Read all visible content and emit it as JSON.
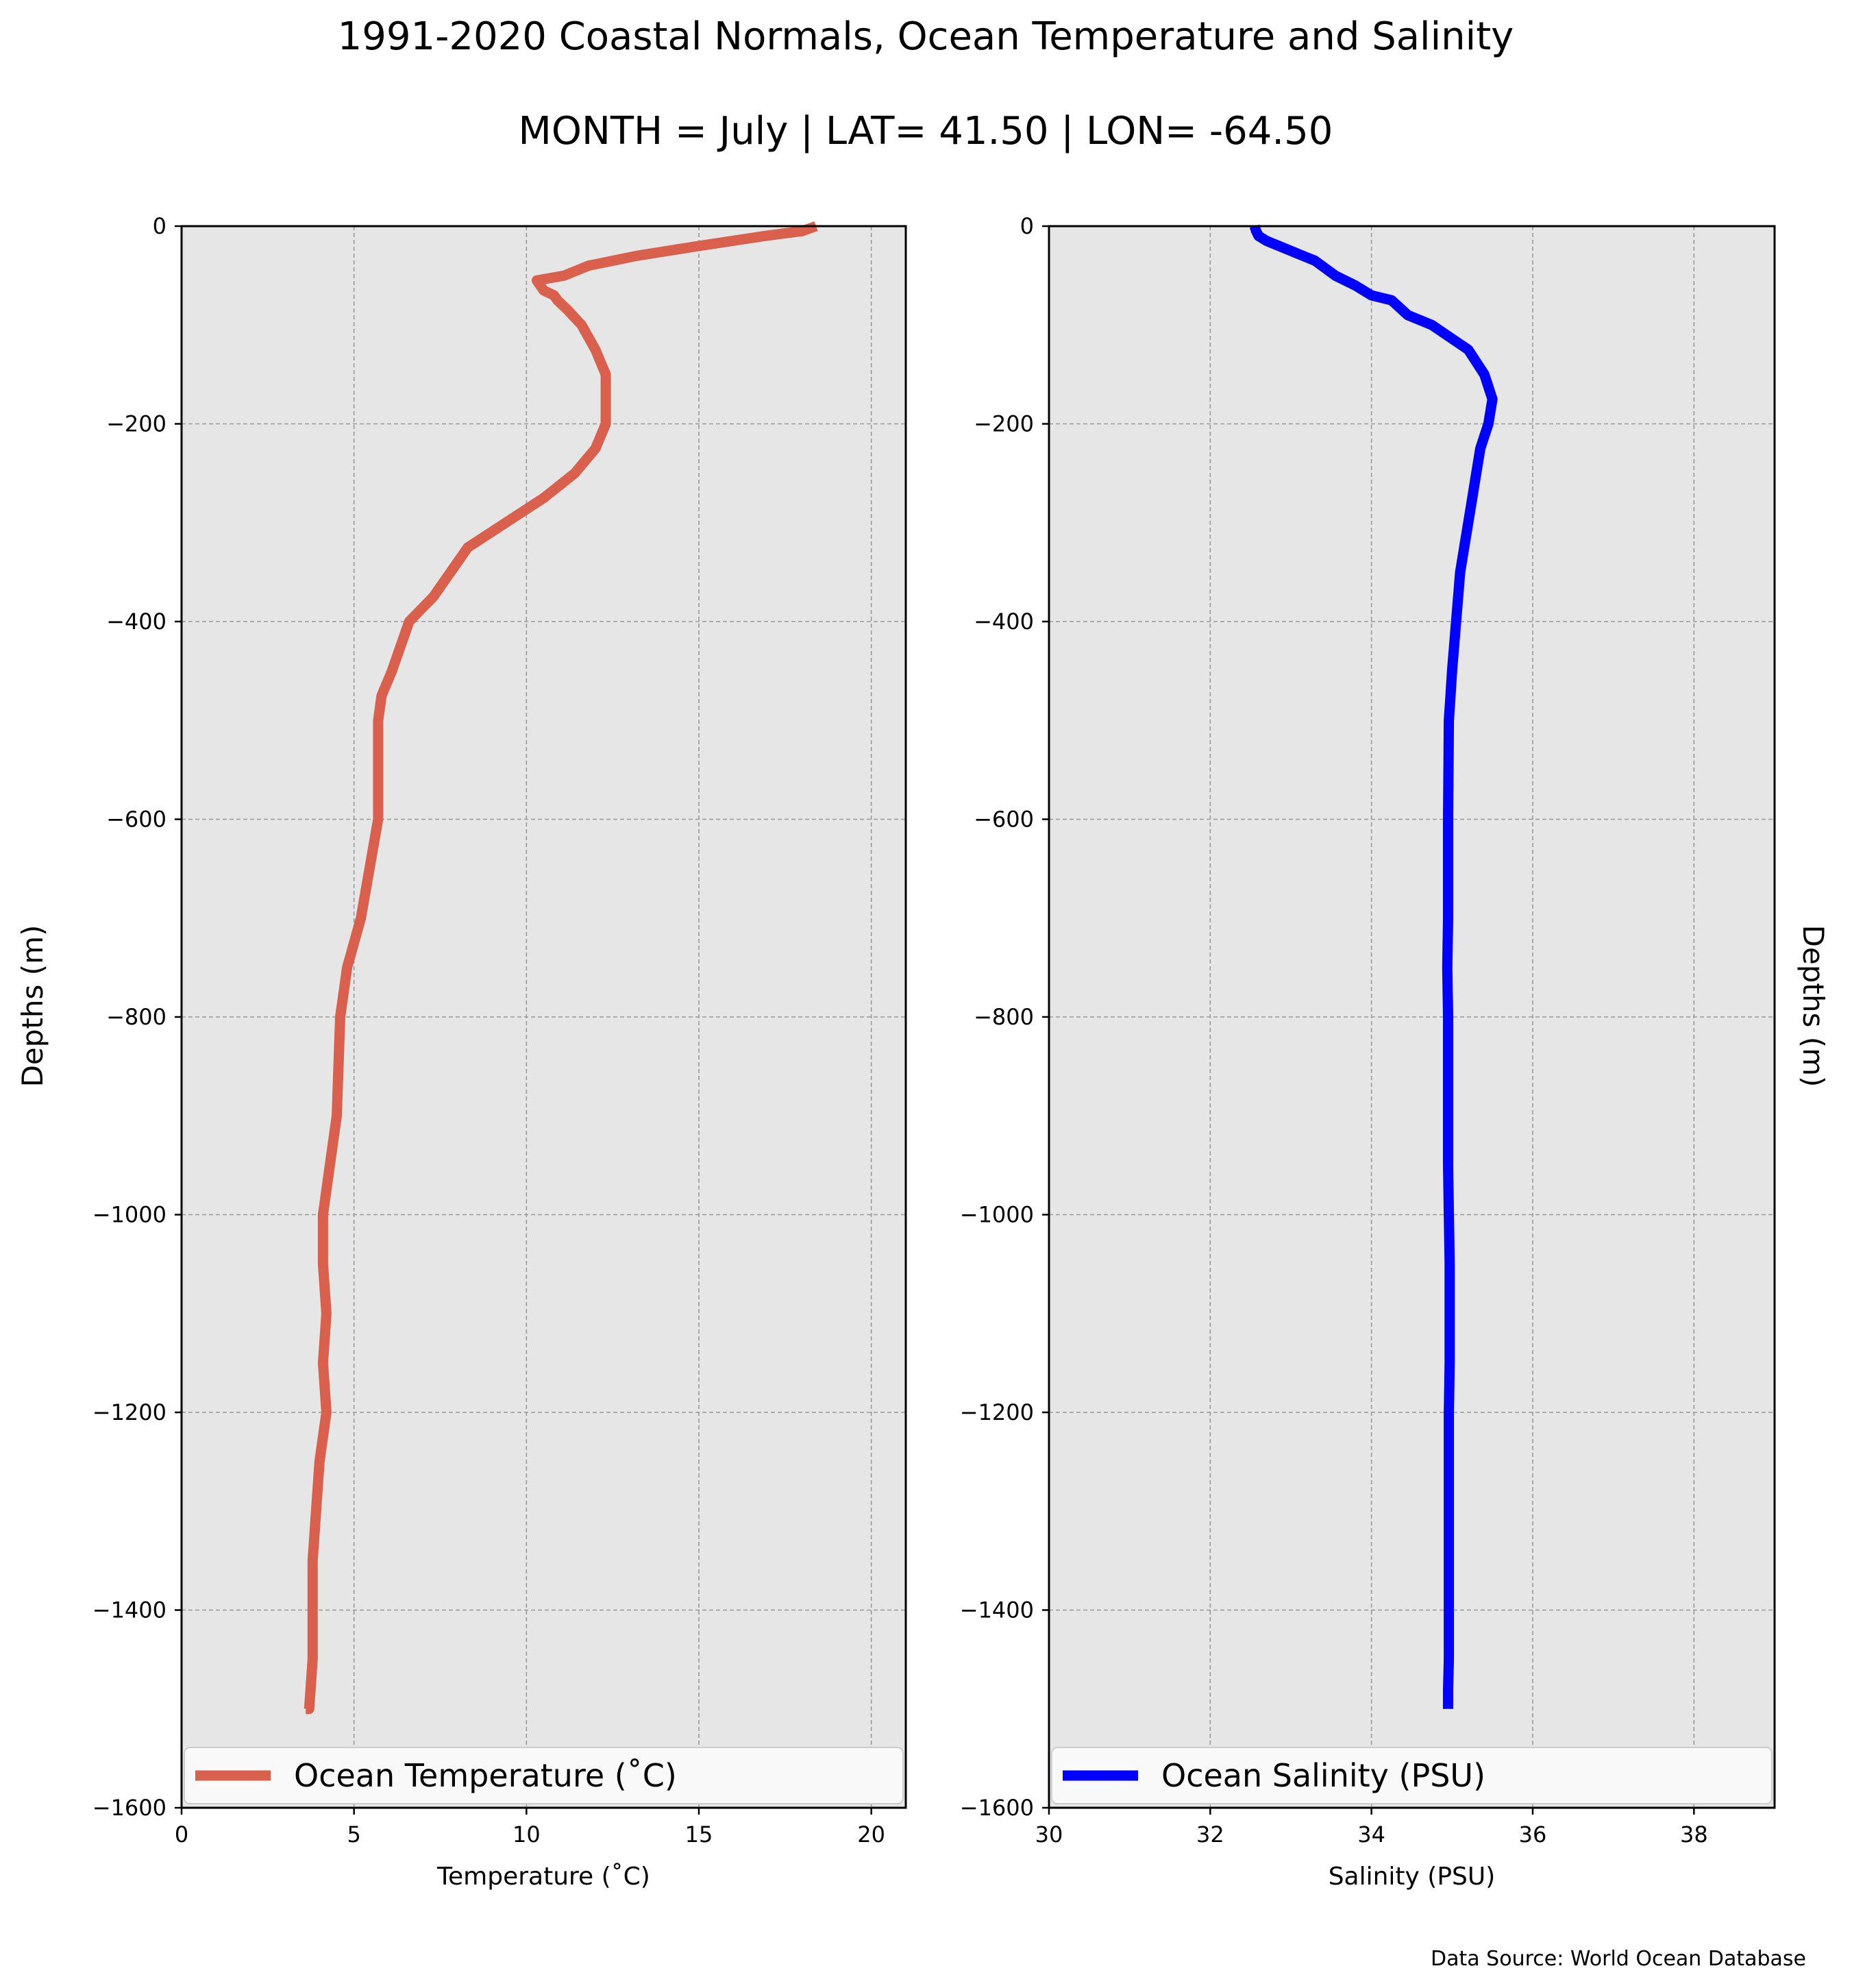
{
  "figure": {
    "title_line1": "1991-2020 Coastal Normals, Ocean Temperature and Salinity",
    "title_line2": "MONTH = July | LAT= 41.50 | LON= -64.50",
    "source": "Data Source: World Ocean Database",
    "panel_bg_color": "#e6e6e6",
    "grid_color": "#999999"
  },
  "chart_data": [
    {
      "type": "line",
      "xlabel": "Temperature ($^\\circ$C)",
      "xlabel_display": "Temperature (˚C)",
      "ylabel": "Depths (m)",
      "xlim": [
        0,
        21
      ],
      "ylim": [
        -1600,
        0
      ],
      "xticks": [
        0,
        5,
        10,
        15,
        20
      ],
      "xtick_labels": [
        "0",
        "5",
        "10",
        "15",
        "20"
      ],
      "yticks": [
        0,
        -200,
        -400,
        -600,
        -800,
        -1000,
        -1200,
        -1400,
        -1600
      ],
      "ytick_labels": [
        "0",
        "−200",
        "−400",
        "−600",
        "−800",
        "−1000",
        "−1200",
        "−1400",
        "−1600"
      ],
      "grid": true,
      "legend_position": "lower center",
      "series": [
        {
          "name": "Ocean Temperature (˚C)",
          "color": "#d9604c",
          "x": [
            18.4,
            18.0,
            16.9,
            15.0,
            13.2,
            11.8,
            11.1,
            10.3,
            10.5,
            10.8,
            10.9,
            11.2,
            11.6,
            12.0,
            12.3,
            12.3,
            12.3,
            12.0,
            11.4,
            10.5,
            9.4,
            8.3,
            7.3,
            6.6,
            6.1,
            5.8,
            5.7,
            5.7,
            5.7,
            5.2,
            4.8,
            4.6,
            4.5,
            4.3,
            4.1,
            4.1,
            4.2,
            4.1,
            4.2,
            4.0,
            3.9,
            3.8,
            3.8,
            3.8,
            3.7,
            3.6
          ],
          "y": [
            0,
            -5,
            -10,
            -20,
            -30,
            -40,
            -50,
            -55,
            -65,
            -70,
            -75,
            -85,
            -100,
            -125,
            -150,
            -175,
            -200,
            -225,
            -250,
            -275,
            -300,
            -325,
            -375,
            -400,
            -450,
            -475,
            -500,
            -550,
            -600,
            -700,
            -750,
            -800,
            -900,
            -950,
            -1000,
            -1050,
            -1100,
            -1150,
            -1200,
            -1250,
            -1300,
            -1350,
            -1400,
            -1450,
            -1500,
            -1500
          ]
        }
      ]
    },
    {
      "type": "line",
      "xlabel": "Salinity (PSU)",
      "ylabel": "Depths (m)",
      "ylabel_side": "right",
      "xlim": [
        30,
        39
      ],
      "ylim": [
        -1600,
        0
      ],
      "xticks": [
        30,
        32,
        34,
        36,
        38
      ],
      "xtick_labels": [
        "30",
        "32",
        "34",
        "36",
        "38"
      ],
      "yticks": [
        0,
        -200,
        -400,
        -600,
        -800,
        -1000,
        -1200,
        -1400,
        -1600
      ],
      "ytick_labels": [
        "0",
        "−200",
        "−400",
        "−600",
        "−800",
        "−1000",
        "−1200",
        "−1400",
        "−1600"
      ],
      "grid": true,
      "legend_position": "lower center",
      "series": [
        {
          "name": "Ocean Salinity (PSU)",
          "color": "#0000ff",
          "x": [
            32.55,
            32.57,
            32.6,
            32.7,
            33.0,
            33.3,
            33.55,
            33.8,
            34.0,
            34.25,
            34.45,
            34.75,
            35.2,
            35.4,
            35.5,
            35.45,
            35.35,
            35.3,
            35.25,
            35.2,
            35.15,
            35.1,
            35.05,
            35.0,
            34.98,
            34.96,
            34.95,
            34.95,
            34.94,
            34.95,
            34.95,
            34.95,
            34.96,
            34.97,
            34.97,
            34.97,
            34.96,
            34.96,
            34.96,
            34.96,
            34.96,
            34.96,
            34.95,
            34.95,
            34.95
          ],
          "y": [
            0,
            -5,
            -10,
            -15,
            -25,
            -35,
            -50,
            -60,
            -70,
            -75,
            -90,
            -100,
            -125,
            -150,
            -175,
            -200,
            -225,
            -250,
            -275,
            -300,
            -325,
            -350,
            -400,
            -450,
            -475,
            -500,
            -600,
            -700,
            -750,
            -800,
            -900,
            -950,
            -1000,
            -1050,
            -1100,
            -1150,
            -1200,
            -1250,
            -1300,
            -1350,
            -1400,
            -1450,
            -1480,
            -1490,
            -1500
          ]
        }
      ]
    }
  ]
}
